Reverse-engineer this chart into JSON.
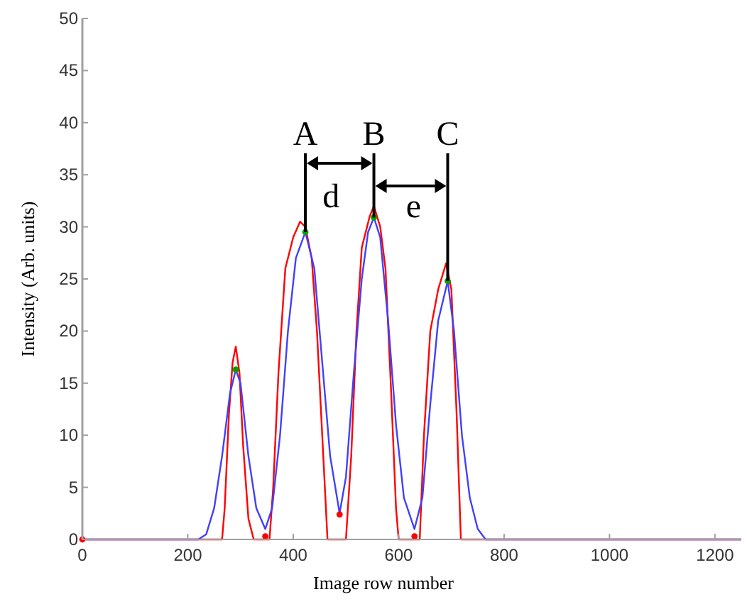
{
  "chart_data": {
    "type": "line",
    "xlabel": "Image row number",
    "ylabel": "Intensity (Arb. units)",
    "xlim": [
      0,
      1250
    ],
    "ylim": [
      0,
      50
    ],
    "xticks": [
      0,
      200,
      400,
      600,
      800,
      1000,
      1200
    ],
    "yticks": [
      0,
      5,
      10,
      15,
      20,
      25,
      30,
      35,
      40,
      45,
      50
    ],
    "grid": false,
    "series": [
      {
        "color": "#ff0000",
        "x": [
          0,
          265,
          270,
          278,
          285,
          291,
          298,
          305,
          315,
          325,
          340,
          355,
          362,
          372,
          385,
          400,
          413,
          423,
          435,
          445,
          455,
          465,
          500,
          510,
          520,
          530,
          545,
          553,
          565,
          575,
          585,
          595,
          600,
          640,
          648,
          660,
          675,
          690,
          700,
          710,
          718,
          1250
        ],
        "values": [
          0,
          0,
          3,
          12,
          17,
          18.5,
          16,
          9,
          2,
          0,
          0,
          0,
          5,
          16,
          26,
          29,
          30.5,
          30,
          27,
          20,
          10,
          0,
          0,
          8,
          20,
          28,
          31,
          32,
          30,
          26,
          15,
          3,
          0,
          0,
          10,
          20,
          24,
          26.5,
          24,
          12,
          0,
          0
        ]
      },
      {
        "color": "#4040ff",
        "x": [
          0,
          220,
          235,
          250,
          265,
          280,
          291,
          300,
          315,
          330,
          347,
          360,
          375,
          390,
          405,
          423,
          440,
          455,
          470,
          488,
          500,
          515,
          530,
          542,
          553,
          565,
          580,
          595,
          610,
          630,
          645,
          660,
          675,
          693,
          705,
          720,
          735,
          750,
          765,
          1250
        ],
        "values": [
          0,
          0,
          0.5,
          3,
          8,
          14,
          16.3,
          15,
          8,
          3,
          1,
          3,
          10,
          20,
          27,
          29.5,
          26,
          17,
          8,
          2.5,
          6,
          16,
          25,
          29.5,
          30.9,
          29,
          21,
          11,
          4,
          1,
          4,
          13,
          21,
          24.8,
          20,
          10,
          4,
          1,
          0,
          0
        ]
      },
      {
        "type": "scatter",
        "marker": "circle",
        "color": "#00a000",
        "x": [
          291,
          423,
          553,
          693
        ],
        "values": [
          16.3,
          29.5,
          30.9,
          24.8
        ]
      },
      {
        "type": "scatter",
        "marker": "circle",
        "color": "#ff0000",
        "x": [
          0,
          347,
          488,
          630
        ],
        "values": [
          0,
          0.3,
          2.4,
          0.3
        ]
      }
    ],
    "annotations": [
      {
        "text": "A",
        "x": 423,
        "y": 29.5
      },
      {
        "text": "B",
        "x": 553,
        "y": 30.9
      },
      {
        "text": "C",
        "x": 693,
        "y": 24.8
      },
      "d",
      "e"
    ]
  }
}
